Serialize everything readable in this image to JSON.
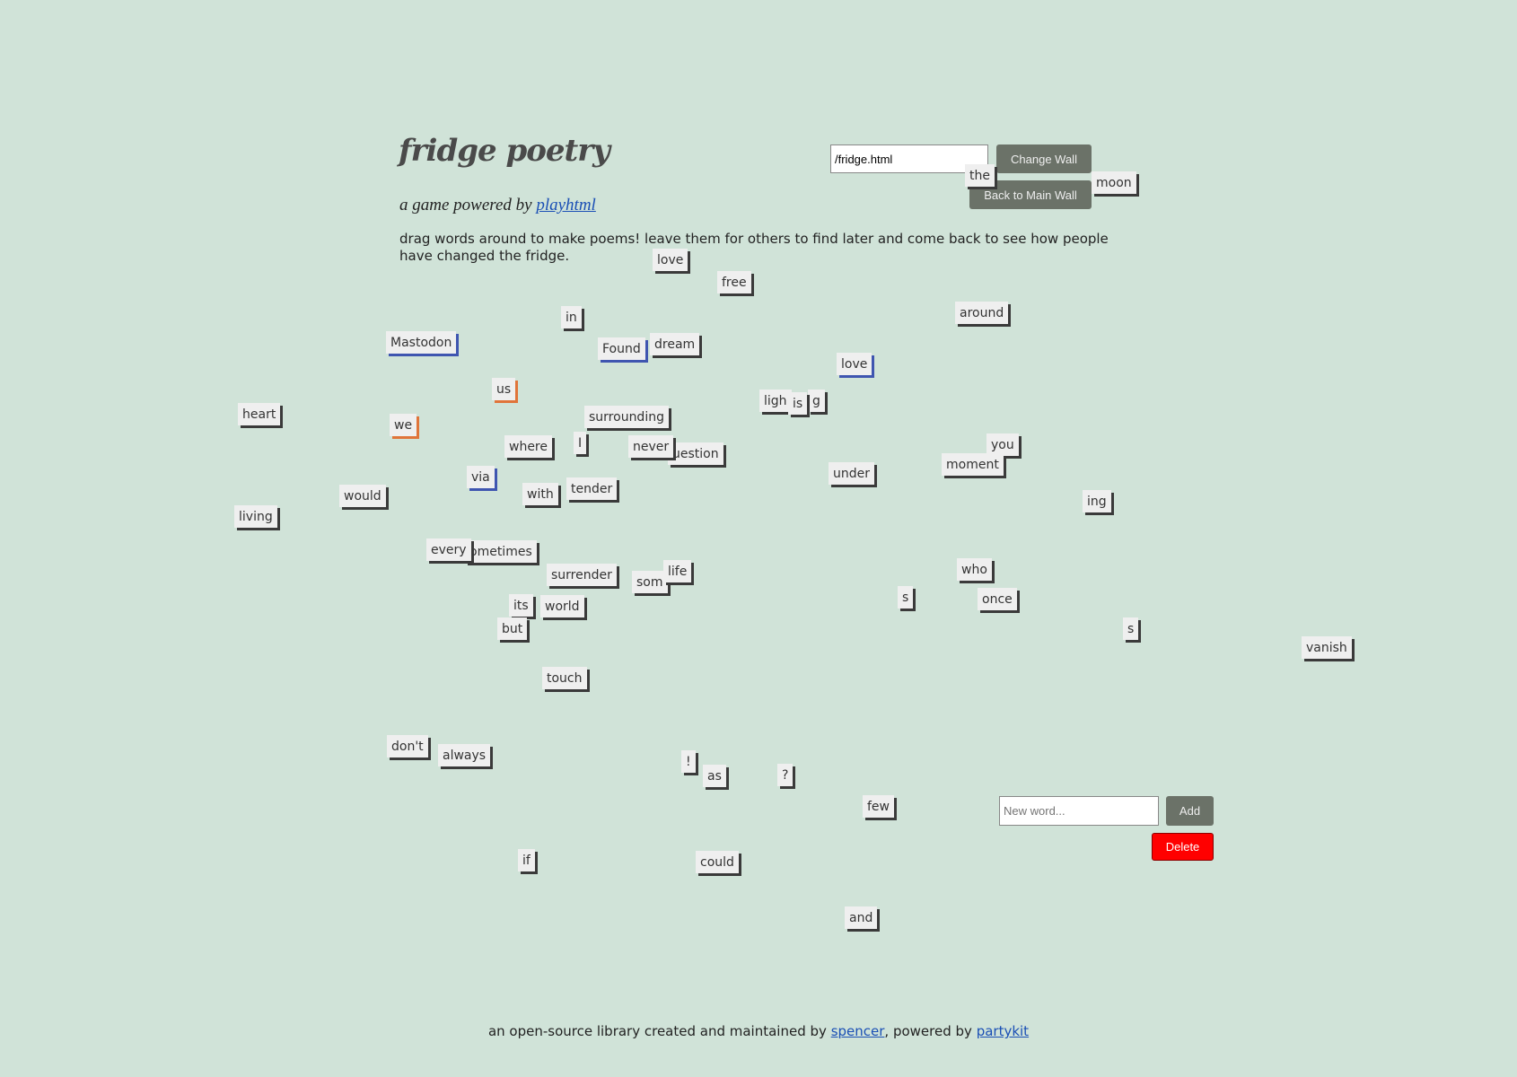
{
  "header": {
    "title": "fridge poetry",
    "subtitle_prefix": "a game powered by",
    "subtitle_link": "playhtml",
    "intro": "drag words around to make poems! leave them for others to find later and come back to see how people have changed the fridge."
  },
  "wall": {
    "path_value": "/fridge.html",
    "change_label": "Change Wall",
    "back_label": "Back to Main Wall"
  },
  "word_form": {
    "placeholder": "New word...",
    "add_label": "Add",
    "delete_label": "Delete"
  },
  "footer": {
    "prefix": "an open-source library created and maintained by",
    "author_link": "spencer",
    "middle": ", powered by",
    "partykit_link": "partykit"
  },
  "magnets": [
    "the",
    "moon",
    "love",
    "free",
    "in",
    "around",
    "Mastodon",
    "Found",
    "dream",
    "love",
    "us",
    "heart",
    "we",
    "ligh",
    "g",
    "is",
    "surrounding",
    "where",
    "I",
    "uestion",
    "never",
    "you",
    "moment",
    "under",
    "via",
    "would",
    "with",
    "tender",
    "ing",
    "living",
    "ometimes",
    "every",
    "surrender",
    "som",
    "life",
    "who",
    "s",
    "once",
    "its",
    "world",
    "but",
    "s",
    "vanish",
    "touch",
    "don't",
    "always",
    "!",
    "as",
    "?",
    "few",
    "if",
    "could",
    "and"
  ],
  "colors": {
    "background": "#d0e3d8",
    "shadow_default": "#3a3a3a",
    "shadow_blue": "#3f55b0",
    "shadow_orange": "#e0743a",
    "delete": "#ff0000"
  }
}
